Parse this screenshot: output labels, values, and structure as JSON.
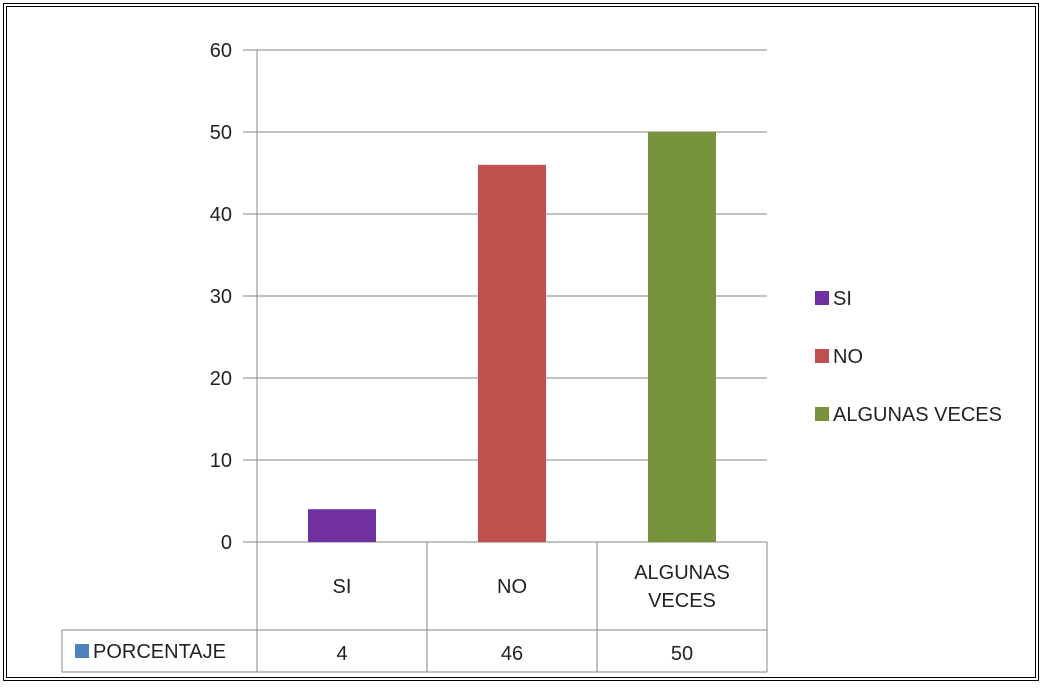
{
  "chart_data": {
    "type": "bar",
    "categories": [
      "SI",
      "NO",
      "ALGUNAS VECES"
    ],
    "category_tick_lines": [
      [
        "SI"
      ],
      [
        "NO"
      ],
      [
        "ALGUNAS",
        "VECES"
      ]
    ],
    "series": [
      {
        "name": "PORCENTAJE",
        "values": [
          4,
          46,
          50
        ],
        "color": "#4f81bd"
      }
    ],
    "bar_colors": [
      "#7030a0",
      "#c0504d",
      "#77933c"
    ],
    "legend": {
      "placement": "right",
      "entries": [
        {
          "label": "SI",
          "color": "#7030a0"
        },
        {
          "label": "NO",
          "color": "#c0504d"
        },
        {
          "label": "ALGUNAS VECES",
          "color": "#77933c"
        }
      ]
    },
    "data_table": {
      "row_label": "PORCENTAJE",
      "values": [
        "4",
        "46",
        "50"
      ]
    },
    "ylim": [
      0,
      60
    ],
    "yticks": [
      0,
      10,
      20,
      30,
      40,
      50,
      60
    ],
    "grid": true,
    "title": "",
    "xlabel": "",
    "ylabel": ""
  }
}
